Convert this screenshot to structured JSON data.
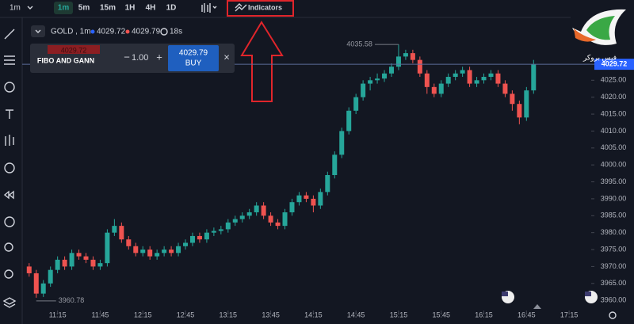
{
  "toolbar": {
    "interval": "1m",
    "timeframes": [
      "1m",
      "5m",
      "15m",
      "1H",
      "4H",
      "1D"
    ],
    "indicators": "Indicators"
  },
  "symbol": {
    "name": "GOLD , 1m",
    "bid": "4029.72",
    "ask": "4029.79",
    "timer": "18s"
  },
  "trade_panel": {
    "strategy": "FIBO AND GANN",
    "sell_price": "4029.72",
    "minus": "−",
    "amount": "1.00",
    "plus": "+",
    "buy_price": "4029.79",
    "buy": "BUY",
    "close": "×"
  },
  "logo": {
    "text": "فيس بروكر"
  },
  "chart_data": {
    "type": "candlestick",
    "x": [
      "10:55",
      "11:00",
      "11:05",
      "11:10",
      "11:15",
      "11:20",
      "11:25",
      "11:30",
      "11:35",
      "11:40",
      "11:45",
      "11:50",
      "11:55",
      "12:00",
      "12:05",
      "12:10",
      "12:15",
      "12:20",
      "12:25",
      "12:30",
      "12:35",
      "12:40",
      "12:45",
      "12:50",
      "12:55",
      "13:00",
      "13:05",
      "13:10",
      "13:15",
      "13:20",
      "13:25",
      "13:30",
      "13:35",
      "13:40",
      "13:45",
      "13:50",
      "13:55",
      "14:00",
      "14:05",
      "14:10",
      "14:15",
      "14:20",
      "14:25",
      "14:30",
      "14:35",
      "14:40",
      "14:45",
      "14:50",
      "14:55",
      "15:00",
      "15:05",
      "15:10",
      "15:15",
      "15:20",
      "15:25",
      "15:30",
      "15:35",
      "15:40",
      "15:45",
      "15:50",
      "15:55",
      "16:00",
      "16:05",
      "16:10",
      "16:15",
      "16:20",
      "16:25",
      "16:30",
      "16:35",
      "16:40",
      "16:45",
      "16:50"
    ],
    "open": [
      3970,
      3968,
      3962,
      3965,
      3969,
      3972,
      3970,
      3974,
      3973,
      3972,
      3970,
      3971,
      3980,
      3982,
      3978,
      3976,
      3974,
      3975,
      3973,
      3974,
      3975,
      3974,
      3976,
      3977,
      3979,
      3978,
      3980,
      3980.5,
      3981,
      3983,
      3984,
      3985,
      3986,
      3988,
      3985,
      3983,
      3982,
      3986,
      3989,
      3991,
      3990,
      3988,
      3992,
      3997,
      4003,
      4010,
      4016,
      4020,
      4024,
      4025,
      4025.5,
      4027,
      4029,
      4032,
      4033,
      4031,
      4027,
      4023,
      4021,
      4024,
      4026,
      4027,
      4028,
      4024,
      4025,
      4026,
      4027,
      4024,
      4021,
      4018,
      4014,
      4022
    ],
    "high": [
      3971,
      3969,
      3966,
      3970,
      3973,
      3973,
      3975,
      3975,
      3974,
      3973,
      3972,
      3981,
      3984,
      3983,
      3979,
      3977,
      3976,
      3976,
      3975,
      3976,
      3976,
      3977,
      3978,
      3980,
      3980,
      3981,
      3981.5,
      3982,
      3984,
      3985,
      3986,
      3987,
      3989,
      3989,
      3986,
      3984,
      3987,
      3990,
      3992,
      3992,
      3991,
      3993,
      3998,
      4004,
      4011,
      4017,
      4021,
      4025,
      4026,
      4027,
      4028,
      4030,
      4035.58,
      4034,
      4034,
      4032,
      4028,
      4024,
      4025,
      4027,
      4028,
      4029,
      4029,
      4026,
      4027,
      4028,
      4028,
      4025,
      4022,
      4019,
      4023,
      4031
    ],
    "low": [
      3967,
      3960.78,
      3961,
      3964,
      3968,
      3969,
      3969,
      3972,
      3971,
      3969,
      3969,
      3970,
      3979,
      3977,
      3975,
      3973,
      3973,
      3972,
      3972,
      3973,
      3973,
      3973,
      3975,
      3976,
      3977,
      3977,
      3979,
      3979.5,
      3980,
      3982,
      3983,
      3984,
      3985,
      3984,
      3982,
      3981,
      3981,
      3985,
      3988,
      3989,
      3986,
      3987,
      3991,
      3996,
      4002,
      4009,
      4015,
      4019,
      4022,
      4024,
      4024.5,
      4026,
      4028,
      4031,
      4030,
      4026,
      4021,
      4020,
      4020,
      4023,
      4025,
      4026,
      4023,
      4023,
      4024,
      4025,
      4023,
      4020,
      4016,
      4012,
      4013,
      4021
    ],
    "close": [
      3968,
      3962,
      3965,
      3969,
      3972,
      3970,
      3974,
      3973,
      3972,
      3970,
      3971,
      3980,
      3982,
      3978,
      3976,
      3974,
      3975,
      3973,
      3974,
      3975,
      3974,
      3976,
      3977,
      3979,
      3978,
      3980,
      3980.5,
      3981,
      3983,
      3984,
      3985,
      3986,
      3988,
      3985,
      3983,
      3982,
      3986,
      3989,
      3991,
      3990,
      3988,
      3992,
      3997,
      4003,
      4010,
      4016,
      4020,
      4024,
      4025,
      4025.5,
      4027,
      4029,
      4032,
      4033,
      4031,
      4027,
      4023,
      4021,
      4024,
      4026,
      4027,
      4028,
      4024,
      4025,
      4026,
      4027,
      4024,
      4021,
      4018,
      4014,
      4022,
      4029.72
    ],
    "up_color": "#26a69a",
    "down_color": "#ef5350",
    "xlim": [
      "10:54",
      "17:30"
    ],
    "xticks": [
      "11:15",
      "11:45",
      "12:15",
      "12:45",
      "13:15",
      "13:45",
      "14:15",
      "14:45",
      "15:15",
      "15:45",
      "16:15",
      "16:45",
      "17:15"
    ],
    "ylim": [
      3957,
      4037
    ],
    "yticks": [
      {
        "value": 3960,
        "label": "3960.00"
      },
      {
        "value": 3965,
        "label": "3965.00"
      },
      {
        "value": 3970,
        "label": "3970.00"
      },
      {
        "value": 3975,
        "label": "3975.00"
      },
      {
        "value": 3980,
        "label": "3980.00"
      },
      {
        "value": 3985,
        "label": "3985.00"
      },
      {
        "value": 3990,
        "label": "3990.00"
      },
      {
        "value": 3995,
        "label": "3995.00"
      },
      {
        "value": 4000,
        "label": "4000.00"
      },
      {
        "value": 4005,
        "label": "4005.00"
      },
      {
        "value": 4010,
        "label": "4010.00"
      },
      {
        "value": 4015,
        "label": "4015.00"
      },
      {
        "value": 4020,
        "label": "4020.00"
      },
      {
        "value": 4025,
        "label": "4025.00"
      }
    ],
    "high_label": 4035.58,
    "low_label": 3960.78,
    "last_price": 4029.72
  }
}
